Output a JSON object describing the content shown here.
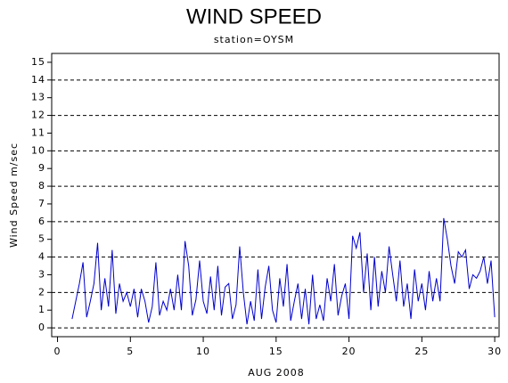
{
  "chart_data": {
    "type": "line",
    "title": "WIND SPEED",
    "subtitle": "station=OYSM",
    "x_label": "AUG 2008",
    "y_label": "Wind Speed m/sec",
    "xlim": [
      -0.4,
      30.3
    ],
    "xticks": [
      0,
      5,
      10,
      15,
      20,
      25,
      30
    ],
    "ylim": [
      -0.5,
      15.5
    ],
    "yticks": [
      0,
      1,
      2,
      3,
      4,
      5,
      6,
      7,
      8,
      9,
      10,
      11,
      12,
      13,
      14,
      15
    ],
    "gridlines": [
      0,
      2,
      4,
      6,
      8,
      10,
      12,
      14
    ],
    "x": [
      1,
      1.25,
      1.5,
      1.75,
      2,
      2.25,
      2.5,
      2.75,
      3,
      3.25,
      3.5,
      3.75,
      4,
      4.25,
      4.5,
      4.75,
      5,
      5.25,
      5.5,
      5.75,
      6,
      6.25,
      6.5,
      6.75,
      7,
      7.25,
      7.5,
      7.75,
      8,
      8.25,
      8.5,
      8.75,
      9,
      9.25,
      9.5,
      9.75,
      10,
      10.25,
      10.5,
      10.75,
      11,
      11.25,
      11.5,
      11.75,
      12,
      12.25,
      12.5,
      12.75,
      13,
      13.25,
      13.5,
      13.75,
      14,
      14.25,
      14.5,
      14.75,
      15,
      15.25,
      15.5,
      15.75,
      16,
      16.25,
      16.5,
      16.75,
      17,
      17.25,
      17.5,
      17.75,
      18,
      18.25,
      18.5,
      18.75,
      19,
      19.25,
      19.5,
      19.75,
      20,
      20.25,
      20.5,
      20.75,
      21,
      21.25,
      21.5,
      21.75,
      22,
      22.25,
      22.5,
      22.75,
      23,
      23.25,
      23.5,
      23.75,
      24,
      24.25,
      24.5,
      24.75,
      25,
      25.25,
      25.5,
      25.75,
      26,
      26.25,
      26.5,
      26.75,
      27,
      27.25,
      27.5,
      27.75,
      28,
      28.25,
      28.5,
      28.75,
      29,
      29.25,
      29.5,
      29.75,
      30
    ],
    "series": [
      {
        "name": "Wind Speed",
        "color": "#0000cc",
        "values": [
          0.5,
          1.5,
          2.5,
          3.7,
          0.6,
          1.5,
          2.5,
          4.8,
          1.0,
          2.8,
          1.2,
          4.4,
          0.8,
          2.5,
          1.5,
          2.0,
          1.2,
          2.2,
          0.6,
          2.2,
          1.5,
          0.3,
          1.2,
          3.7,
          0.7,
          1.5,
          1.0,
          2.2,
          1.0,
          3.0,
          1.0,
          4.9,
          3.5,
          0.7,
          1.6,
          3.8,
          1.5,
          0.8,
          2.9,
          1.0,
          3.5,
          0.7,
          2.3,
          2.5,
          0.5,
          1.3,
          4.6,
          2.0,
          0.2,
          1.5,
          0.4,
          3.3,
          0.5,
          2.3,
          3.5,
          1.0,
          0.3,
          2.8,
          1.2,
          3.6,
          0.4,
          1.5,
          2.5,
          0.5,
          2.2,
          0.2,
          3.0,
          0.5,
          1.3,
          0.4,
          2.8,
          1.5,
          3.6,
          0.7,
          1.8,
          2.5,
          0.5,
          5.2,
          4.5,
          5.4,
          2.0,
          4.2,
          1.0,
          4.0,
          1.2,
          3.2,
          2.0,
          4.6,
          3.0,
          1.5,
          3.8,
          1.2,
          2.5,
          0.5,
          3.3,
          1.5,
          2.5,
          1.0,
          3.2,
          1.5,
          2.8,
          1.5,
          6.2,
          5.0,
          3.5,
          2.5,
          4.3,
          4.0,
          4.4,
          2.2,
          3.0,
          2.8,
          3.2,
          4.0,
          2.5,
          3.8,
          0.6
        ]
      }
    ]
  }
}
